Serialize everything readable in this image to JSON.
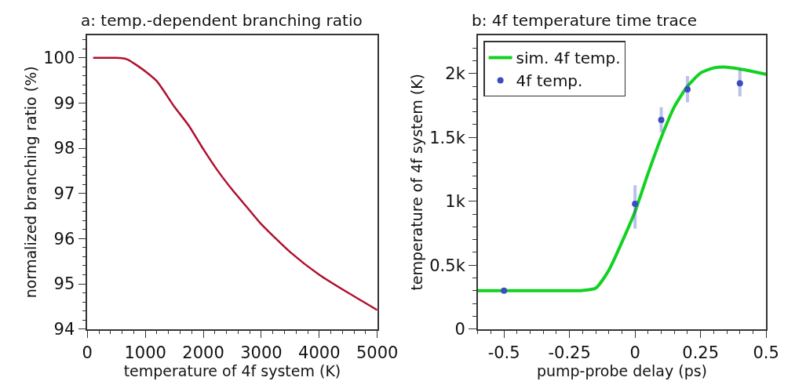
{
  "chart_data": [
    {
      "type": "line",
      "title": "a: temp.-dependent branching ratio",
      "xlabel": "temperature of 4f system (K)",
      "ylabel": "normalized branching ratio (%)",
      "x": [
        100,
        300,
        500,
        600,
        700,
        800,
        1000,
        1200,
        1500,
        1750,
        2000,
        2250,
        2500,
        2750,
        3000,
        3500,
        4000,
        4500,
        5000
      ],
      "series": [
        {
          "color": "#b0102e",
          "values": [
            100,
            100,
            100,
            99.99,
            99.96,
            99.88,
            99.7,
            99.48,
            98.92,
            98.5,
            97.98,
            97.5,
            97.08,
            96.7,
            96.32,
            95.7,
            95.2,
            94.8,
            94.42
          ]
        }
      ],
      "xlim": [
        0,
        5000
      ],
      "ylim": [
        94,
        100.5
      ],
      "xticks": [
        0,
        {
          "value": 200,
          "label": null
        },
        {
          "value": 400,
          "label": null
        },
        {
          "value": 600,
          "label": null
        },
        {
          "value": 800,
          "label": null
        },
        1000,
        {
          "value": 1200,
          "label": null
        },
        {
          "value": 1400,
          "label": null
        },
        {
          "value": 1600,
          "label": null
        },
        {
          "value": 1800,
          "label": null
        },
        2000,
        {
          "value": 2200,
          "label": null
        },
        {
          "value": 2400,
          "label": null
        },
        {
          "value": 2600,
          "label": null
        },
        {
          "value": 2800,
          "label": null
        },
        3000,
        {
          "value": 3200,
          "label": null
        },
        {
          "value": 3400,
          "label": null
        },
        {
          "value": 3600,
          "label": null
        },
        {
          "value": 3800,
          "label": null
        },
        4000,
        {
          "value": 4200,
          "label": null
        },
        {
          "value": 4400,
          "label": null
        },
        {
          "value": 4600,
          "label": null
        },
        {
          "value": 4800,
          "label": null
        },
        5000
      ],
      "yticks": [
        94,
        {
          "value": 94.2,
          "label": null
        },
        {
          "value": 94.4,
          "label": null
        },
        {
          "value": 94.6,
          "label": null
        },
        {
          "value": 94.8,
          "label": null
        },
        95,
        {
          "value": 95.2,
          "label": null
        },
        {
          "value": 95.4,
          "label": null
        },
        {
          "value": 95.6,
          "label": null
        },
        {
          "value": 95.8,
          "label": null
        },
        96,
        {
          "value": 96.2,
          "label": null
        },
        {
          "value": 96.4,
          "label": null
        },
        {
          "value": 96.6,
          "label": null
        },
        {
          "value": 96.8,
          "label": null
        },
        97,
        {
          "value": 97.2,
          "label": null
        },
        {
          "value": 97.4,
          "label": null
        },
        {
          "value": 97.6,
          "label": null
        },
        {
          "value": 97.8,
          "label": null
        },
        98,
        {
          "value": 98.2,
          "label": null
        },
        {
          "value": 98.4,
          "label": null
        },
        {
          "value": 98.6,
          "label": null
        },
        {
          "value": 98.8,
          "label": null
        },
        99,
        {
          "value": 99.2,
          "label": null
        },
        {
          "value": 99.4,
          "label": null
        },
        {
          "value": 99.6,
          "label": null
        },
        {
          "value": 99.8,
          "label": null
        },
        100,
        {
          "value": 100.2,
          "label": null
        },
        {
          "value": 100.4,
          "label": null
        }
      ],
      "legend": false,
      "line_style": "solid"
    },
    {
      "type": "line",
      "title": "b: 4f temperature time trace",
      "xlabel": "pump-probe delay (ps)",
      "ylabel": "temperature of 4f system (K)",
      "series": [
        {
          "name": "4f temp.",
          "type": "scatter",
          "color": "#3b4cc0",
          "marker": "circle",
          "x": [
            -0.5,
            0,
            0.1,
            0.2,
            0.4
          ],
          "values": [
            300,
            980,
            1636,
            1876,
            1924
          ],
          "errors": [
            null,
            [
              786,
              1126
            ],
            [
              1540,
              1736
            ],
            [
              1774,
              1980
            ],
            [
              1820,
              2030
            ]
          ]
        },
        {
          "name": "sim. 4f temp.",
          "type": "line",
          "color": "#11d222",
          "line_style": "solid",
          "x": [
            -0.6,
            -0.5,
            -0.4,
            -0.3,
            -0.2,
            -0.15,
            -0.1,
            -0.05,
            0,
            0.05,
            0.1,
            0.15,
            0.2,
            0.25,
            0.3,
            0.35,
            0.4,
            0.45,
            0.5
          ],
          "values": [
            300,
            300,
            300,
            300,
            302,
            320,
            460,
            680,
            920,
            1220,
            1500,
            1740,
            1900,
            2004,
            2044,
            2050,
            2036,
            2016,
            1994
          ]
        }
      ],
      "xlim": [
        -0.6,
        0.5
      ],
      "ylim": [
        0,
        2300
      ],
      "xticks": [
        {
          "value": -0.6,
          "label": null
        },
        {
          "value": -0.55,
          "label": null
        },
        -0.5,
        {
          "value": -0.45,
          "label": null
        },
        {
          "value": -0.4,
          "label": null
        },
        {
          "value": -0.35,
          "label": null
        },
        {
          "value": -0.3,
          "label": null
        },
        -0.25,
        {
          "value": -0.2,
          "label": null
        },
        {
          "value": -0.15,
          "label": null
        },
        {
          "value": -0.1,
          "label": null
        },
        {
          "value": -0.05,
          "label": null
        },
        0,
        {
          "value": 0.05,
          "label": null
        },
        {
          "value": 0.1,
          "label": null
        },
        {
          "value": 0.15,
          "label": null
        },
        {
          "value": 0.2,
          "label": null
        },
        0.25,
        {
          "value": 0.3,
          "label": null
        },
        {
          "value": 0.35,
          "label": null
        },
        {
          "value": 0.4,
          "label": null
        },
        {
          "value": 0.45,
          "label": null
        },
        0.5
      ],
      "yticks": [
        0,
        {
          "value": 100,
          "label": null
        },
        {
          "value": 200,
          "label": null
        },
        {
          "value": 300,
          "label": null
        },
        {
          "value": 400,
          "label": null
        },
        {
          "value": 500,
          "label": "0.5k"
        },
        {
          "value": 600,
          "label": null
        },
        {
          "value": 700,
          "label": null
        },
        {
          "value": 800,
          "label": null
        },
        {
          "value": 900,
          "label": null
        },
        {
          "value": 1000,
          "label": "1k"
        },
        {
          "value": 1100,
          "label": null
        },
        {
          "value": 1200,
          "label": null
        },
        {
          "value": 1300,
          "label": null
        },
        {
          "value": 1400,
          "label": null
        },
        {
          "value": 1500,
          "label": "1.5k"
        },
        {
          "value": 1600,
          "label": null
        },
        {
          "value": 1700,
          "label": null
        },
        {
          "value": 1800,
          "label": null
        },
        {
          "value": 1900,
          "label": null
        },
        {
          "value": 2000,
          "label": "2k"
        },
        {
          "value": 2100,
          "label": null
        },
        {
          "value": 2200,
          "label": null
        }
      ],
      "legend": "top left"
    }
  ]
}
